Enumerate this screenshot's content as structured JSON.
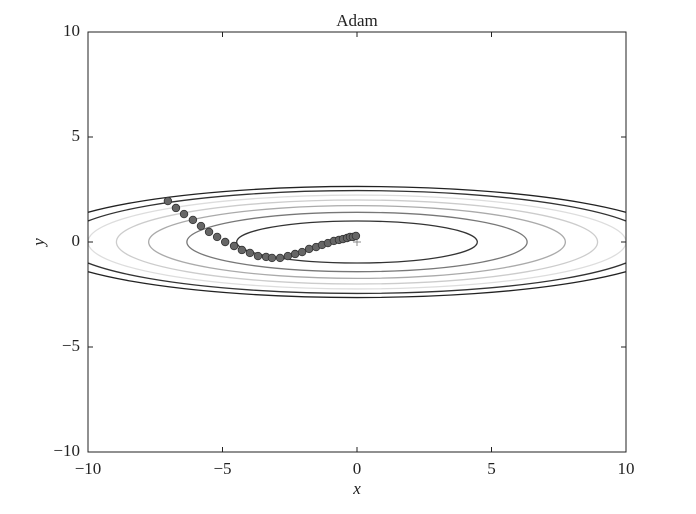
{
  "chart_data": {
    "type": "scatter",
    "title": "Adam",
    "x_label": "x",
    "y_label": "y",
    "xlim": [
      -10,
      10
    ],
    "ylim": [
      -10,
      10
    ],
    "xticks": [
      {
        "value": -10,
        "label": "−10"
      },
      {
        "value": -5,
        "label": "−5"
      },
      0,
      5,
      10
    ],
    "yticks": [
      {
        "value": -10,
        "label": "−10"
      },
      {
        "value": -5,
        "label": "−5"
      },
      0,
      5,
      10
    ],
    "contour_levels": [
      1,
      2,
      3,
      4,
      5,
      6,
      7
    ],
    "contour_colors": [
      "#333333",
      "#777777",
      "#aaaaaa",
      "#cccccc",
      "#dddddd",
      "#333333",
      "#222222"
    ],
    "series": [
      {
        "color": "#666666",
        "x": [
          -7.03,
          -6.73,
          -6.43,
          -6.1,
          -5.8,
          -5.5,
          -5.2,
          -4.9,
          -4.57,
          -4.28,
          -3.98,
          -3.68,
          -3.38,
          -3.16,
          -2.86,
          -2.57,
          -2.3,
          -2.04,
          -1.78,
          -1.52,
          -1.3,
          -1.08,
          -0.86,
          -0.67,
          -0.52,
          -0.37,
          -0.26,
          -0.15,
          -0.04
        ],
        "values": [
          1.95,
          1.62,
          1.33,
          1.05,
          0.76,
          0.48,
          0.24,
          0,
          -0.19,
          -0.38,
          -0.52,
          -0.67,
          -0.71,
          -0.76,
          -0.76,
          -0.67,
          -0.57,
          -0.48,
          -0.33,
          -0.24,
          -0.14,
          -0.05,
          0.05,
          0.1,
          0.14,
          0.19,
          0.24,
          0.24,
          0.29
        ]
      }
    ]
  }
}
